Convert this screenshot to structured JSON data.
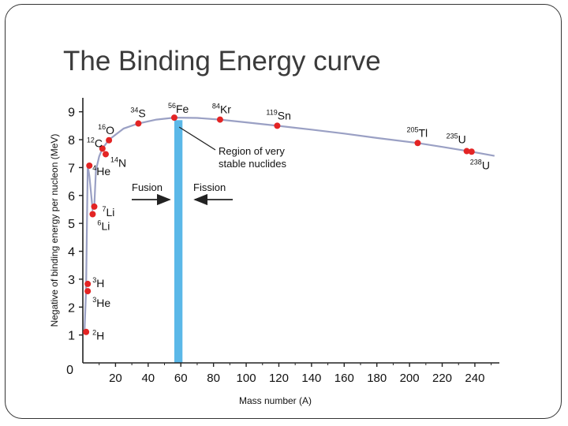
{
  "slide": {
    "title": "The Binding Energy curve"
  },
  "chart_data": {
    "type": "scatter",
    "title": "",
    "xlabel": "Mass number (A)",
    "ylabel": "Negative of binding energy per nucleon (MeV)",
    "xlim": [
      0,
      255
    ],
    "ylim": [
      0,
      9.5
    ],
    "x_ticks": [
      20,
      40,
      60,
      80,
      100,
      120,
      140,
      160,
      180,
      200,
      220,
      240
    ],
    "y_ticks": [
      1,
      2,
      3,
      4,
      5,
      6,
      7,
      8,
      9
    ],
    "origin_label": "0",
    "grid": false,
    "legend": "none",
    "colors": {
      "curve": "#9aa0c4",
      "point": "#e32424",
      "band": "#5bb8e8",
      "axis": "#222222",
      "text": "#111111"
    },
    "stable_band": {
      "x_start": 56,
      "x_end": 61
    },
    "points": [
      {
        "mass": "2",
        "symbol": "H",
        "x": 2,
        "y": 1.11
      },
      {
        "mass": "3",
        "symbol": "H",
        "x": 3,
        "y": 2.83
      },
      {
        "mass": "3",
        "symbol": "He",
        "x": 3,
        "y": 2.57
      },
      {
        "mass": "4",
        "symbol": "He",
        "x": 4,
        "y": 7.07
      },
      {
        "mass": "6",
        "symbol": "Li",
        "x": 6,
        "y": 5.33
      },
      {
        "mass": "7",
        "symbol": "Li",
        "x": 7,
        "y": 5.6
      },
      {
        "mass": "12",
        "symbol": "C",
        "x": 12,
        "y": 7.68
      },
      {
        "mass": "14",
        "symbol": "N",
        "x": 14,
        "y": 7.48
      },
      {
        "mass": "16",
        "symbol": "O",
        "x": 16,
        "y": 7.98
      },
      {
        "mass": "34",
        "symbol": "S",
        "x": 34,
        "y": 8.58
      },
      {
        "mass": "56",
        "symbol": "Fe",
        "x": 56,
        "y": 8.79
      },
      {
        "mass": "84",
        "symbol": "Kr",
        "x": 84,
        "y": 8.72
      },
      {
        "mass": "119",
        "symbol": "Sn",
        "x": 119,
        "y": 8.5
      },
      {
        "mass": "205",
        "symbol": "Tl",
        "x": 205,
        "y": 7.88
      },
      {
        "mass": "235",
        "symbol": "U",
        "x": 235,
        "y": 7.59
      },
      {
        "mass": "238",
        "symbol": "U",
        "x": 238,
        "y": 7.57
      }
    ],
    "curve": [
      {
        "x": 1,
        "y": 1.11
      },
      {
        "x": 2,
        "y": 2.6
      },
      {
        "x": 3,
        "y": 7.07
      },
      {
        "x": 4,
        "y": 6.7
      },
      {
        "x": 6,
        "y": 5.5
      },
      {
        "x": 7,
        "y": 5.6
      },
      {
        "x": 8,
        "y": 6.9
      },
      {
        "x": 10,
        "y": 7.4
      },
      {
        "x": 12,
        "y": 7.68
      },
      {
        "x": 16,
        "y": 8.0
      },
      {
        "x": 25,
        "y": 8.4
      },
      {
        "x": 34,
        "y": 8.58
      },
      {
        "x": 45,
        "y": 8.72
      },
      {
        "x": 56,
        "y": 8.79
      },
      {
        "x": 70,
        "y": 8.78
      },
      {
        "x": 84,
        "y": 8.72
      },
      {
        "x": 100,
        "y": 8.62
      },
      {
        "x": 119,
        "y": 8.5
      },
      {
        "x": 140,
        "y": 8.36
      },
      {
        "x": 160,
        "y": 8.22
      },
      {
        "x": 180,
        "y": 8.06
      },
      {
        "x": 205,
        "y": 7.88
      },
      {
        "x": 220,
        "y": 7.74
      },
      {
        "x": 238,
        "y": 7.57
      },
      {
        "x": 252,
        "y": 7.42
      }
    ],
    "annotations": {
      "region_line1": "Region of very",
      "region_line2": "stable nuclides",
      "fusion": "Fusion",
      "fission": "Fission"
    }
  }
}
